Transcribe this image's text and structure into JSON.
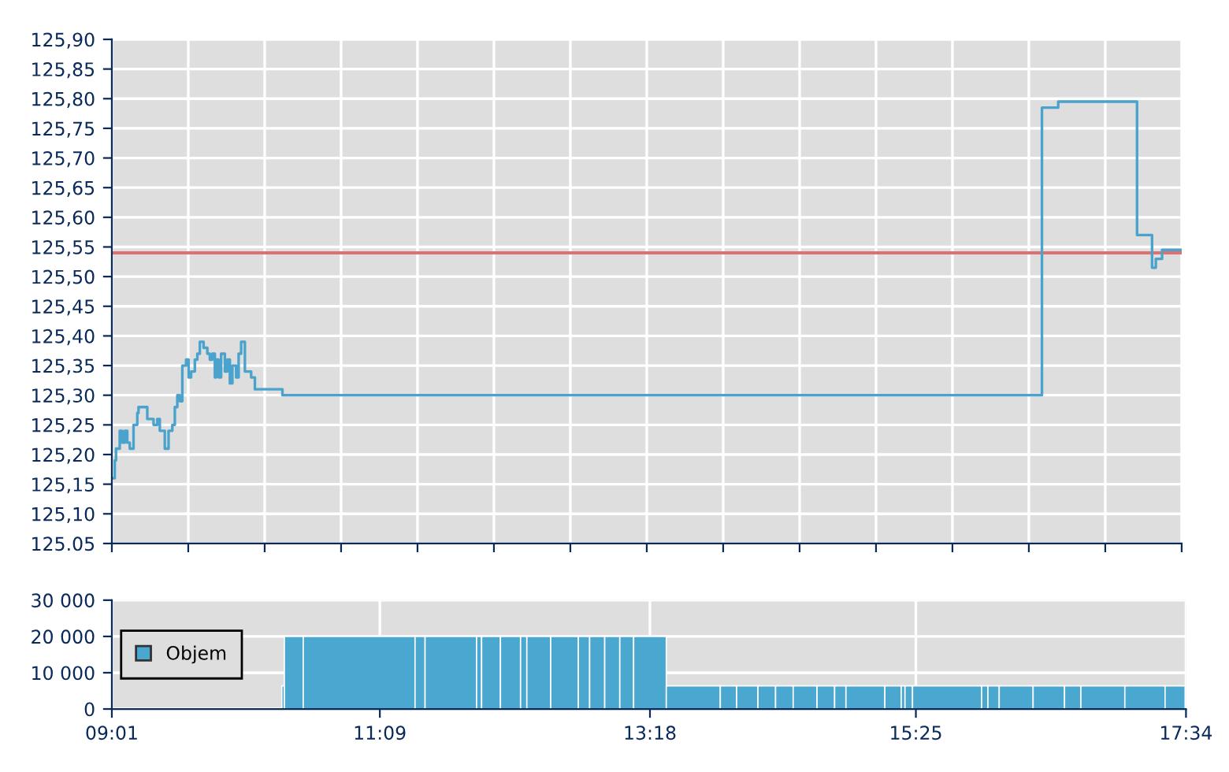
{
  "chart_data": [
    {
      "type": "step",
      "tick_labels": "y",
      "grid": true,
      "xlim": [
        9.0167,
        17.5667
      ],
      "ylim": [
        125.05,
        125.9
      ],
      "xticks": [
        {
          "value": 9.0167,
          "label": null
        },
        {
          "value": 9.6274,
          "label": null
        },
        {
          "value": 10.2381,
          "label": null
        },
        {
          "value": 10.8488,
          "label": null
        },
        {
          "value": 11.4595,
          "label": null
        },
        {
          "value": 12.0702,
          "label": null
        },
        {
          "value": 12.681,
          "label": null
        },
        {
          "value": 13.2917,
          "label": null
        },
        {
          "value": 13.9024,
          "label": null
        },
        {
          "value": 14.5131,
          "label": null
        },
        {
          "value": 15.1238,
          "label": null
        },
        {
          "value": 15.7345,
          "label": null
        },
        {
          "value": 16.3452,
          "label": null
        },
        {
          "value": 16.956,
          "label": null
        },
        {
          "value": 17.5667,
          "label": null
        }
      ],
      "yticks": [
        {
          "value": 125.05,
          "label": "125.05"
        },
        {
          "value": 125.1,
          "label": "125,10"
        },
        {
          "value": 125.15,
          "label": "125,15"
        },
        {
          "value": 125.2,
          "label": "125,20"
        },
        {
          "value": 125.25,
          "label": "125,25"
        },
        {
          "value": 125.3,
          "label": "125,30"
        },
        {
          "value": 125.35,
          "label": "125,35"
        },
        {
          "value": 125.4,
          "label": "125,40"
        },
        {
          "value": 125.45,
          "label": "125,45"
        },
        {
          "value": 125.5,
          "label": "125,50"
        },
        {
          "value": 125.55,
          "label": "125,55"
        },
        {
          "value": 125.6,
          "label": "125,60"
        },
        {
          "value": 125.65,
          "label": "125,65"
        },
        {
          "value": 125.7,
          "label": "125,70"
        },
        {
          "value": 125.75,
          "label": "125,75"
        },
        {
          "value": 125.8,
          "label": "125,80"
        },
        {
          "value": 125.85,
          "label": "125,85"
        },
        {
          "value": 125.9,
          "label": "125,90"
        }
      ],
      "ref_lines": [
        {
          "axis": "y",
          "value": 125.54,
          "color": "#e07070"
        }
      ],
      "series": [
        {
          "color": "#4aa3cc",
          "x": [
            9.02,
            9.04,
            9.05,
            9.08,
            9.1,
            9.12,
            9.14,
            9.16,
            9.19,
            9.22,
            9.23,
            9.26,
            9.3,
            9.33,
            9.35,
            9.38,
            9.4,
            9.44,
            9.47,
            9.5,
            9.52,
            9.54,
            9.56,
            9.58,
            9.61,
            9.63,
            9.65,
            9.68,
            9.7,
            9.72,
            9.75,
            9.78,
            9.8,
            9.82,
            9.84,
            9.85,
            9.87,
            9.89,
            9.92,
            9.94,
            9.96,
            9.98,
            10.01,
            10.03,
            10.05,
            10.08,
            10.11,
            10.13,
            10.16,
            10.2,
            10.24,
            10.29,
            10.33,
            10.38,
            16.45,
            16.58,
            17.21,
            17.33,
            17.36,
            17.41,
            17.56
          ],
          "values": [
            125.16,
            125.19,
            125.21,
            125.24,
            125.22,
            125.24,
            125.22,
            125.21,
            125.25,
            125.27,
            125.28,
            125.28,
            125.26,
            125.26,
            125.25,
            125.26,
            125.24,
            125.21,
            125.24,
            125.25,
            125.28,
            125.3,
            125.29,
            125.35,
            125.36,
            125.33,
            125.34,
            125.36,
            125.37,
            125.39,
            125.38,
            125.37,
            125.36,
            125.37,
            125.33,
            125.36,
            125.33,
            125.37,
            125.34,
            125.36,
            125.32,
            125.35,
            125.33,
            125.37,
            125.39,
            125.34,
            125.34,
            125.33,
            125.31,
            125.31,
            125.31,
            125.31,
            125.31,
            125.3,
            125.785,
            125.795,
            125.57,
            125.515,
            125.53,
            125.545,
            125.545
          ]
        }
      ]
    },
    {
      "type": "histogram",
      "grid": true,
      "legend": "left",
      "xlim": [
        9.0167,
        17.5667
      ],
      "ylim": [
        0,
        30000
      ],
      "xticks": [
        {
          "value": 9.0167,
          "label": "09:01"
        },
        {
          "value": 11.15,
          "label": "11:09"
        },
        {
          "value": 13.3,
          "label": "13:18"
        },
        {
          "value": 15.4167,
          "label": "15:25"
        },
        {
          "value": 17.5667,
          "label": "17:34"
        }
      ],
      "yticks": [
        0,
        {
          "value": 10000,
          "label": "10 000"
        },
        {
          "value": 20000,
          "label": "20 000"
        },
        {
          "value": 30000,
          "label": "30 000"
        }
      ],
      "bins": [
        10.37,
        10.39,
        10.54,
        11.43,
        11.51,
        11.92,
        11.96,
        12.11,
        12.27,
        12.32,
        12.51,
        12.73,
        12.82,
        12.94,
        13.06,
        13.17,
        13.43,
        13.86,
        13.99,
        14.16,
        14.3,
        14.44,
        14.63,
        14.77,
        14.86,
        15.17,
        15.3,
        15.33,
        15.39,
        15.94,
        15.99,
        16.08,
        16.35,
        16.6,
        16.73,
        17.08,
        17.4,
        17.56
      ],
      "series": [
        {
          "name": "Objem",
          "color": "#4aa8d0",
          "values": [
            6400,
            20000,
            20000,
            20000,
            20000,
            20000,
            20000,
            20000,
            20000,
            20000,
            20000,
            20000,
            20000,
            20000,
            20000,
            20000,
            6400,
            6400,
            6400,
            6400,
            6400,
            6400,
            6400,
            6400,
            6400,
            6400,
            6400,
            6400,
            6400,
            6400,
            6400,
            6400,
            6400,
            6400,
            6400,
            6400,
            6400
          ]
        }
      ]
    }
  ]
}
